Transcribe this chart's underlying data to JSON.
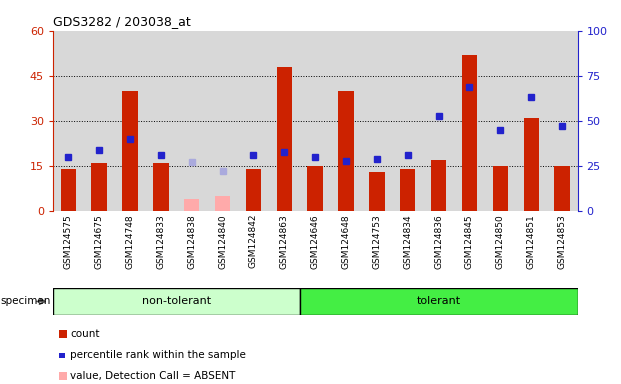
{
  "title": "GDS3282 / 203038_at",
  "samples": [
    "GSM124575",
    "GSM124675",
    "GSM124748",
    "GSM124833",
    "GSM124838",
    "GSM124840",
    "GSM124842",
    "GSM124863",
    "GSM124646",
    "GSM124648",
    "GSM124753",
    "GSM124834",
    "GSM124836",
    "GSM124845",
    "GSM124850",
    "GSM124851",
    "GSM124853"
  ],
  "n_nontol": 8,
  "n_tol": 9,
  "count_values": [
    14,
    16,
    40,
    16,
    null,
    null,
    14,
    48,
    15,
    40,
    13,
    14,
    17,
    52,
    15,
    31,
    15
  ],
  "count_absent": [
    null,
    null,
    null,
    null,
    4,
    5,
    null,
    null,
    null,
    null,
    null,
    null,
    null,
    null,
    null,
    null,
    null
  ],
  "rank_values": [
    30,
    34,
    40,
    31,
    null,
    null,
    31,
    33,
    30,
    28,
    29,
    31,
    53,
    69,
    45,
    63,
    47
  ],
  "rank_absent": [
    null,
    null,
    null,
    null,
    27,
    22,
    null,
    null,
    null,
    null,
    null,
    null,
    null,
    null,
    null,
    null,
    null
  ],
  "ylim_left": [
    0,
    60
  ],
  "ylim_right": [
    0,
    100
  ],
  "yticks_left": [
    0,
    15,
    30,
    45,
    60
  ],
  "yticks_right": [
    0,
    25,
    50,
    75,
    100
  ],
  "color_count": "#cc2200",
  "color_rank": "#2222cc",
  "color_absent_count": "#ffaaaa",
  "color_absent_rank": "#aaaadd",
  "bg_plot": "#d8d8d8",
  "bg_nontolerant": "#ccffcc",
  "bg_tolerant": "#44ee44",
  "bar_width": 0.5,
  "gridline_vals": [
    15,
    30,
    45
  ],
  "ytick_label_fontsize": 8,
  "xtick_label_fontsize": 6.5,
  "title_fontsize": 9,
  "legend_fontsize": 7.5
}
